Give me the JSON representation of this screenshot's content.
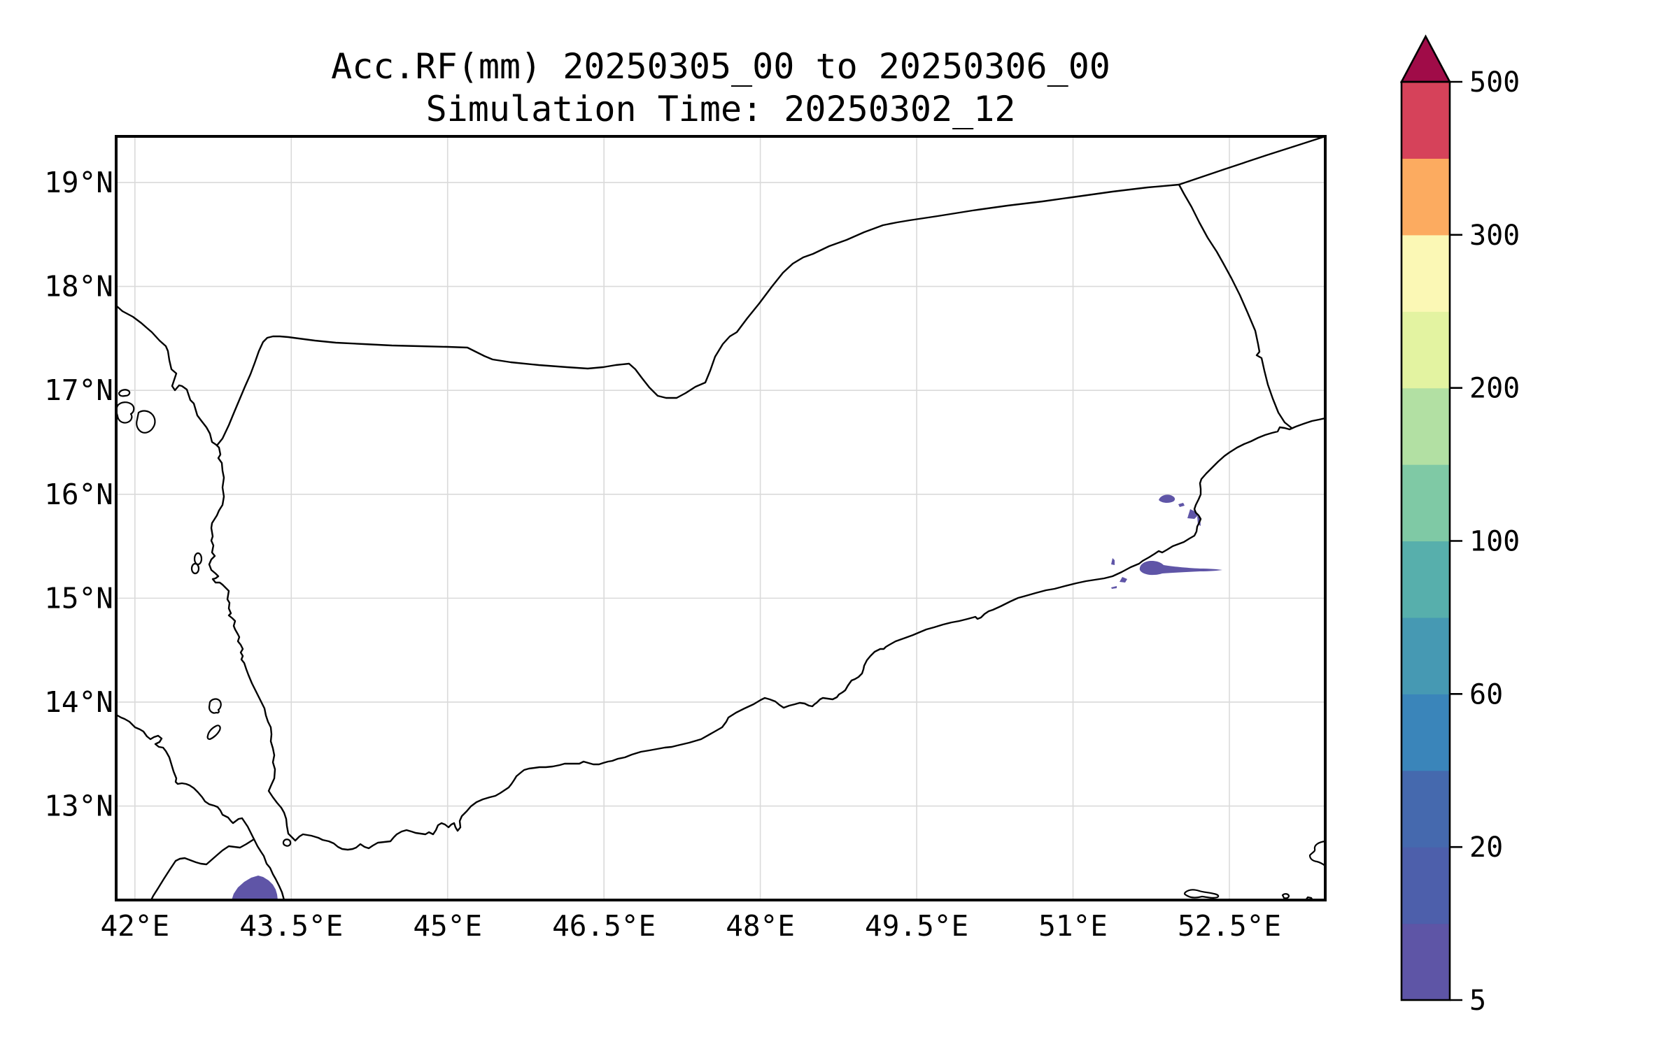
{
  "title": {
    "line1": "Acc.RF(mm) 20250305_00 to 20250306_00",
    "line2": "Simulation Time: 20250302_12"
  },
  "map": {
    "x_ticks": [
      {
        "value": 42.0,
        "label": "42°E"
      },
      {
        "value": 43.5,
        "label": "43.5°E"
      },
      {
        "value": 45.0,
        "label": "45°E"
      },
      {
        "value": 46.5,
        "label": "46.5°E"
      },
      {
        "value": 48.0,
        "label": "48°E"
      },
      {
        "value": 49.5,
        "label": "49.5°E"
      },
      {
        "value": 51.0,
        "label": "51°E"
      },
      {
        "value": 52.5,
        "label": "52.5°E"
      }
    ],
    "y_ticks": [
      {
        "value": 19,
        "label": "19°N"
      },
      {
        "value": 18,
        "label": "18°N"
      },
      {
        "value": 17,
        "label": "17°N"
      },
      {
        "value": 16,
        "label": "16°N"
      },
      {
        "value": 15,
        "label": "15°N"
      },
      {
        "value": 14,
        "label": "14°N"
      },
      {
        "value": 13,
        "label": "13°N"
      }
    ],
    "gridline_color": "#dadada",
    "coastline_color": "#000000",
    "rain_patch_color": "#5f55a7"
  },
  "colorbar": {
    "levels": [
      5,
      10,
      20,
      40,
      60,
      80,
      100,
      150,
      200,
      250,
      300,
      400,
      500
    ],
    "tick_labels": [
      {
        "value": 500,
        "label": "500"
      },
      {
        "value": 300,
        "label": "300"
      },
      {
        "value": 200,
        "label": "200"
      },
      {
        "value": 100,
        "label": "100"
      },
      {
        "value": 60,
        "label": "60"
      },
      {
        "value": 20,
        "label": "20"
      },
      {
        "value": 5,
        "label": "5"
      }
    ],
    "segment_colors": [
      "#5e55a6",
      "#4d5fab",
      "#4569ae",
      "#3a85ba",
      "#4699b3",
      "#57afac",
      "#7fc9a5",
      "#b2e0a3",
      "#e3f3a1",
      "#fbf8b5",
      "#fcab60",
      "#d6425a"
    ],
    "over_color": "#a00c48"
  },
  "chart_data": {
    "type": "filled-contour-map",
    "title": "Acc.RF(mm) 20250305_00 to 20250306_00",
    "subtitle": "Simulation Time: 20250302_12",
    "variable": "Accumulated rainfall (mm)",
    "x_tick_values_deg_east": [
      42,
      43.5,
      45,
      46.5,
      48,
      49.5,
      51,
      52.5
    ],
    "y_tick_values_deg_north": [
      13,
      14,
      15,
      16,
      17,
      18,
      19
    ],
    "grid": true,
    "legend_position": "right colorbar, extend max arrow",
    "colorbar_levels_mm": [
      5,
      10,
      20,
      40,
      60,
      80,
      100,
      150,
      200,
      250,
      300,
      400,
      500
    ],
    "colorbar_labeled_ticks_mm": [
      5,
      20,
      60,
      100,
      200,
      300,
      500
    ],
    "rainfall_features": [
      {
        "approx_lon_e": 43.3,
        "approx_lat_n": 12.2,
        "value_bin_mm": "5-10",
        "note": "small filled area touching southern map edge"
      },
      {
        "approx_lon_e": 51.9,
        "approx_lat_n": 16.0,
        "value_bin_mm": "5-10",
        "note": "cluster of small patches near coast"
      },
      {
        "approx_lon_e": 52.1,
        "approx_lat_n": 15.3,
        "value_bin_mm": "5-10",
        "note": "elongated patch extending east along coastline"
      },
      {
        "approx_lon_e": 51.5,
        "approx_lat_n": 15.4,
        "value_bin_mm": "5-10",
        "note": "few tiny specks"
      }
    ]
  }
}
